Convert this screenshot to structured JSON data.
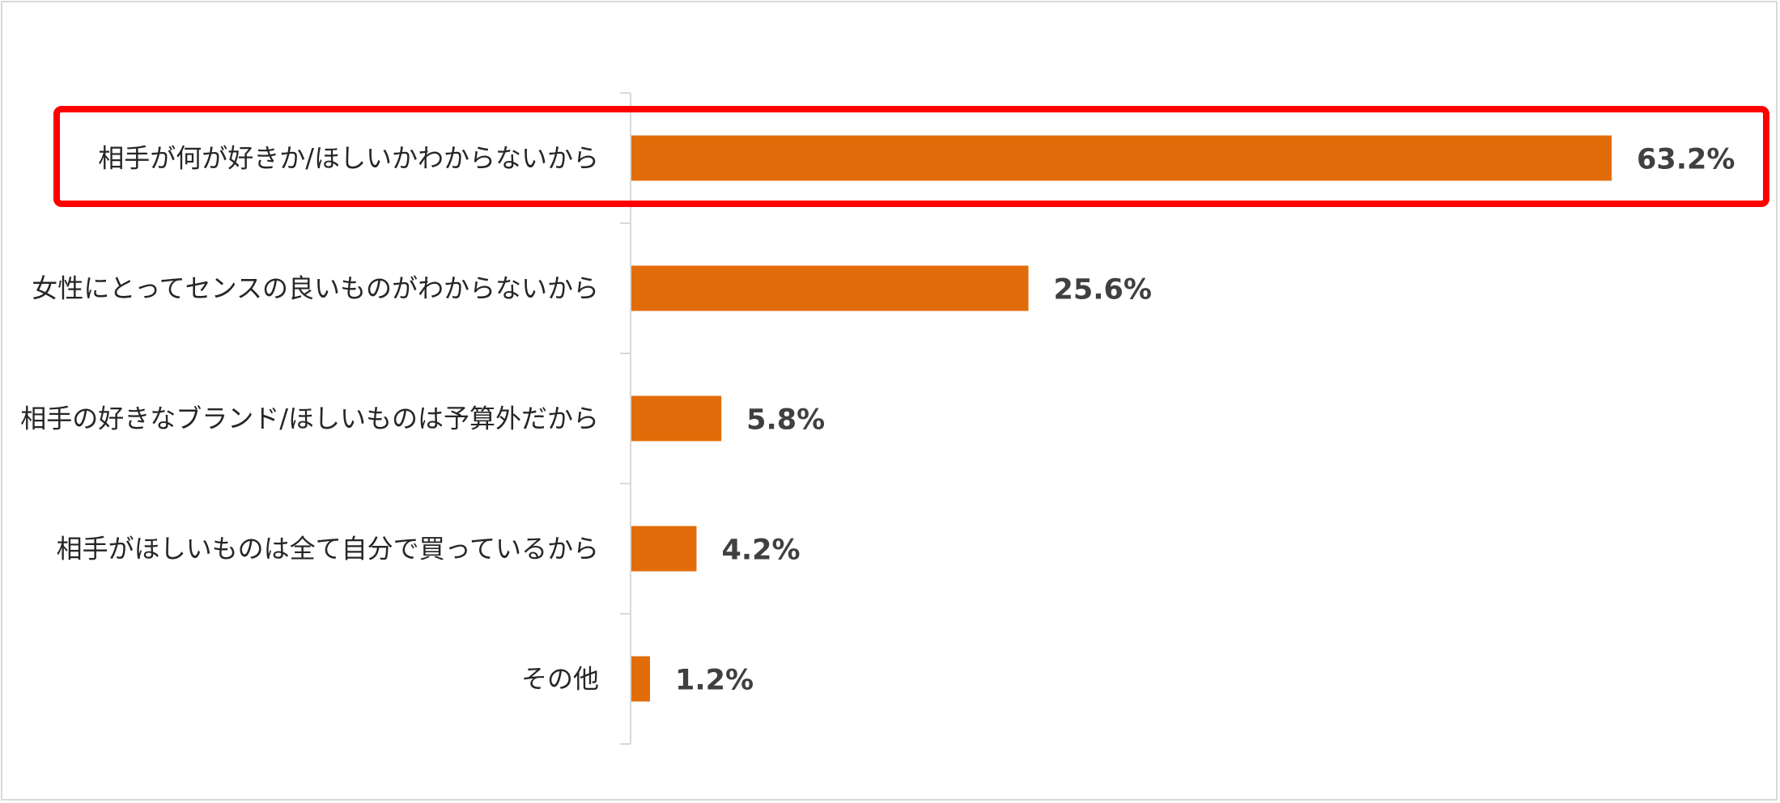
{
  "chart_data": {
    "type": "bar",
    "orientation": "horizontal",
    "categories": [
      "相手が何が好きか/ほしいかわからないから",
      "女性にとってセンスの良いものがわからないから",
      "相手の好きなブランド/ほしいものは予算外だから",
      "相手がほしいものは全て自分で買っているから",
      "その他"
    ],
    "values": [
      63.2,
      25.6,
      5.8,
      4.2,
      1.2
    ],
    "value_labels": [
      "63.2%",
      "25.6%",
      "5.8%",
      "4.2%",
      "1.2%"
    ],
    "xlim": [
      0,
      63.2
    ],
    "grid": false,
    "legend": "none",
    "highlight_index": 0,
    "colors": {
      "bar": "#e36c0a",
      "highlight": "#ff0000",
      "axis": "#d9d9d9",
      "frame": "#d9d9d9"
    }
  }
}
